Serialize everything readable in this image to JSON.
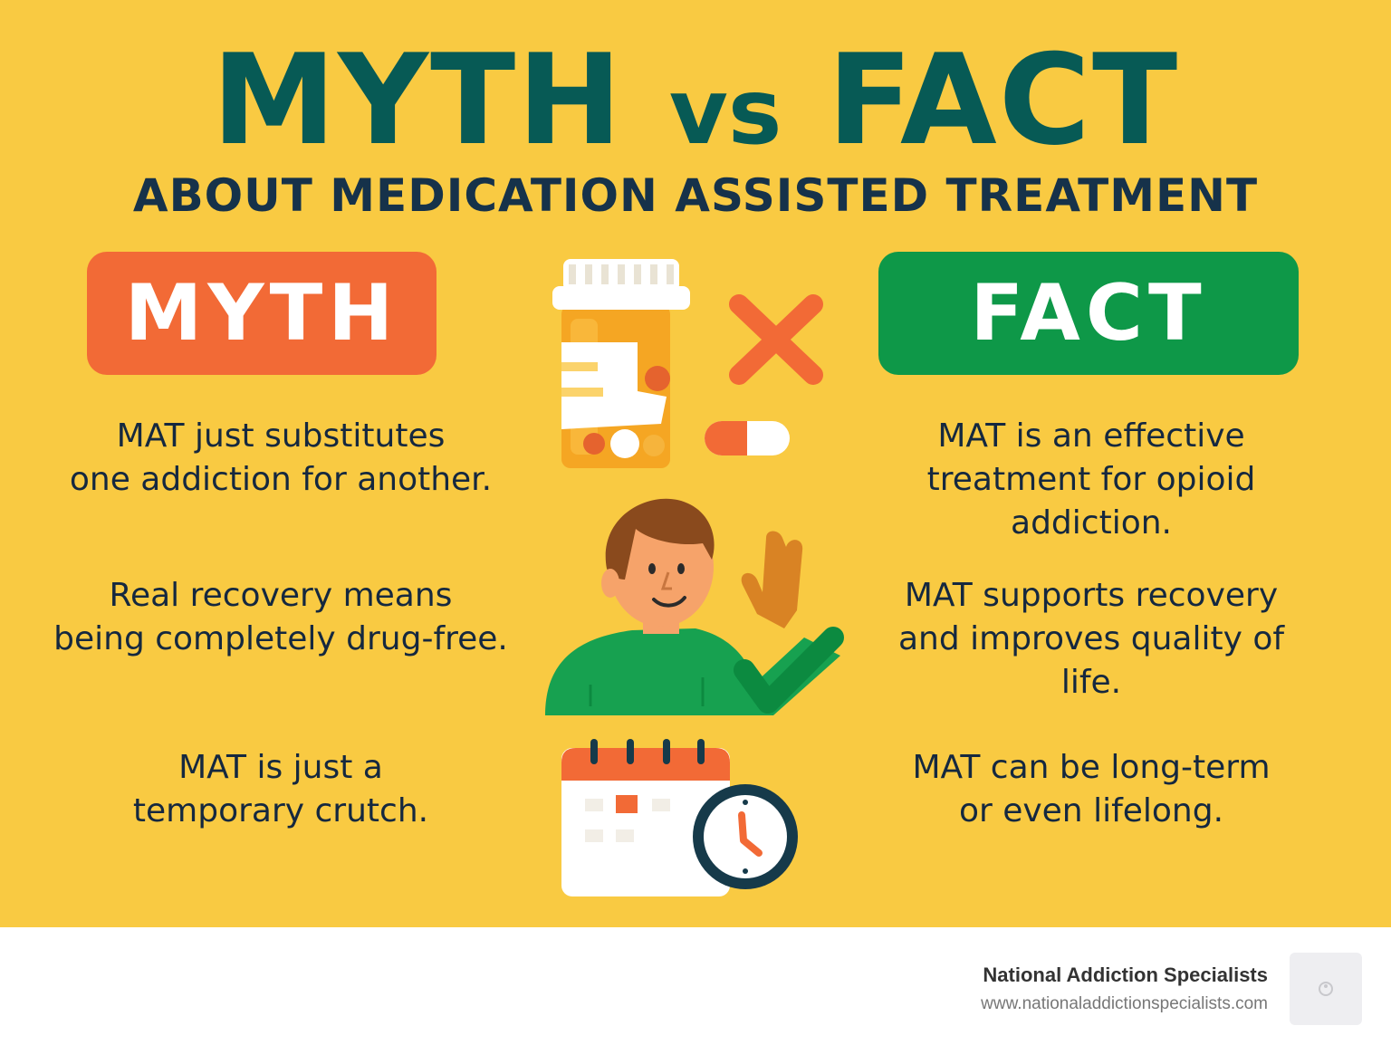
{
  "title": {
    "left": "MYTH",
    "middle": "vs",
    "right": "FACT"
  },
  "subtitle": "ABOUT MEDICATION ASSISTED TREATMENT",
  "badges": {
    "myth": "MYTH",
    "fact": "FACT"
  },
  "rows": [
    {
      "myth": [
        "MAT just substitutes",
        "one addiction for another."
      ],
      "fact": [
        "MAT is an effective",
        "treatment for opioid",
        "addiction."
      ],
      "icon": "pill-bottle-icon"
    },
    {
      "myth": [
        "Real recovery means",
        "being completely drug-free."
      ],
      "fact": [
        "MAT supports recovery",
        "and improves quality of",
        "life."
      ],
      "icon": "waving-person-icon"
    },
    {
      "myth": [
        "MAT is just a",
        "temporary crutch."
      ],
      "fact": [
        "MAT can be long-term",
        "or even lifelong."
      ],
      "icon": "calendar-clock-icon"
    }
  ],
  "footer": {
    "brand": "National Addiction Specialists",
    "url": "www.nationaladdictionspecialists.com"
  },
  "colors": {
    "background": "#f9ca42",
    "title": "#075a55",
    "myth": "#f26a36",
    "fact": "#0e9848",
    "text": "#15283f"
  }
}
